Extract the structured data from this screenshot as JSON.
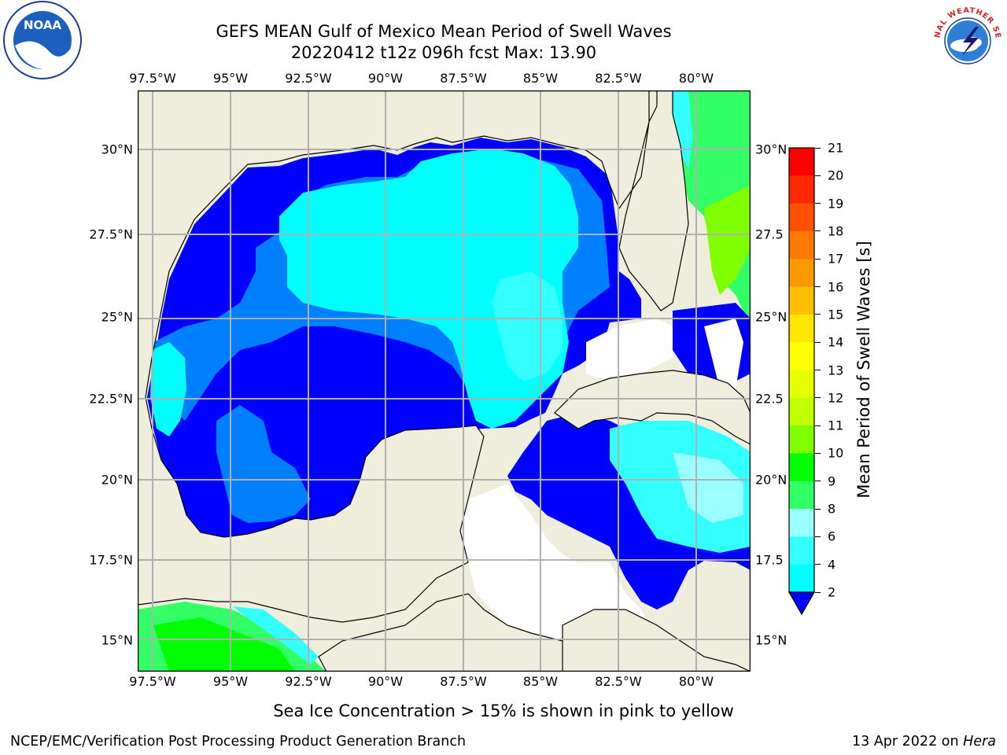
{
  "title": {
    "line1": "GEFS MEAN Gulf of Mexico Mean Period of Swell Waves",
    "line2": "20220412 t12z 096h fcst   Max: 13.90"
  },
  "map": {
    "lon_labels": [
      "97.5°W",
      "95°W",
      "92.5°W",
      "90°W",
      "87.5°W",
      "85°W",
      "82.5°W",
      "80°W"
    ],
    "lat_labels": [
      "30°N",
      "27.5°N",
      "25°N",
      "22.5°N",
      "20°N",
      "17.5°N",
      "15°N"
    ],
    "lat_labels_right": [
      "30°N",
      "27.5",
      "25°N",
      "22.5",
      "20°N",
      "17.5",
      "15°N"
    ],
    "land_color": "#efeedc",
    "grid_color": "#b0b0b0"
  },
  "colorbar": {
    "label": "Mean Period of Swell Waves [s]",
    "ticks": [
      "21",
      "20",
      "19",
      "18",
      "17",
      "16",
      "15",
      "14",
      "13",
      "12",
      "11",
      "10",
      "9",
      "8",
      "6",
      "4",
      "2"
    ],
    "colors": [
      "#ff0000",
      "#ff2800",
      "#ff5000",
      "#ff7800",
      "#ff9900",
      "#ffbf00",
      "#ffe600",
      "#ffff00",
      "#e6ff00",
      "#bfff00",
      "#80ff00",
      "#00ff00",
      "#33ff66",
      "#99ffff",
      "#33ffff",
      "#00ffff",
      "#0080ff",
      "#0000ff"
    ]
  },
  "caption": "Sea Ice Concentration > 15% is shown in pink to yellow",
  "footer": {
    "left": "NCEP/EMC/Verification Post Processing Product Generation Branch",
    "right_prefix": "13 Apr 2022 on ",
    "right_host": "Hera"
  },
  "logos": {
    "left": "NOAA",
    "right": "NATIONAL WEATHER SERVICE",
    "left_icon": "noaa-logo-icon",
    "right_icon": "nws-logo-icon"
  }
}
